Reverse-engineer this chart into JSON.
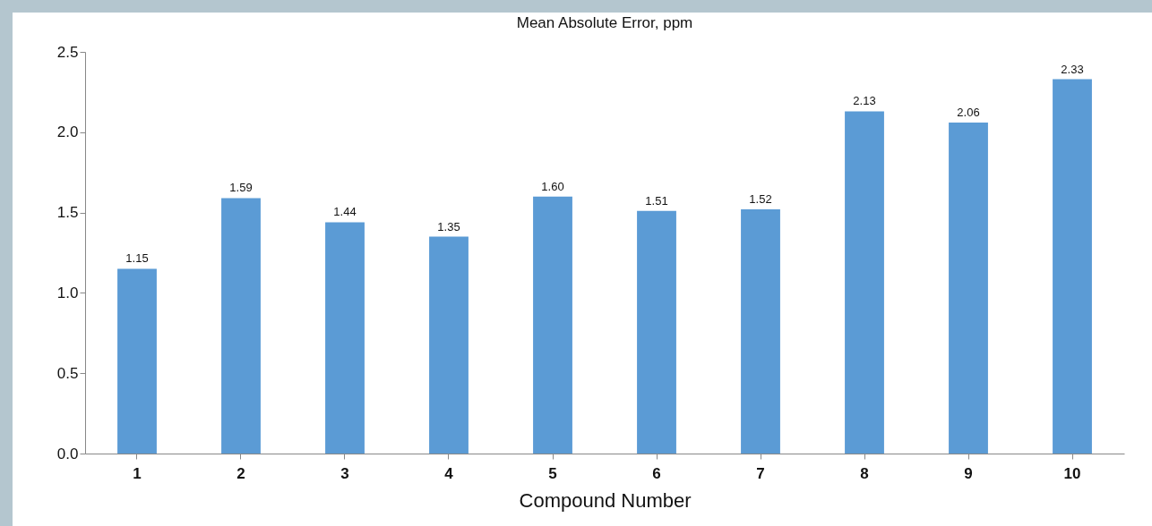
{
  "chart_data": {
    "type": "bar",
    "title": "Mean Absolute Error, ppm",
    "xlabel": "Compound Number",
    "categories": [
      "1",
      "2",
      "3",
      "4",
      "5",
      "6",
      "7",
      "8",
      "9",
      "10"
    ],
    "values": [
      1.15,
      1.59,
      1.44,
      1.35,
      1.6,
      1.51,
      1.52,
      2.13,
      2.06,
      2.33
    ],
    "value_labels": [
      "1.15",
      "1.59",
      "1.44",
      "1.35",
      "1.60",
      "1.51",
      "1.52",
      "2.13",
      "2.06",
      "2.33"
    ],
    "color": "#5b9bd5",
    "ylim": [
      0,
      2.5
    ],
    "yticks": [
      {
        "value": 0,
        "label": "0.0"
      },
      {
        "value": 0.5,
        "label": "0.5"
      },
      {
        "value": 1,
        "label": "1.0"
      },
      {
        "value": 1.5,
        "label": "1.5"
      },
      {
        "value": 2,
        "label": "2.0"
      },
      {
        "value": 2.5,
        "label": "2.5"
      }
    ]
  }
}
